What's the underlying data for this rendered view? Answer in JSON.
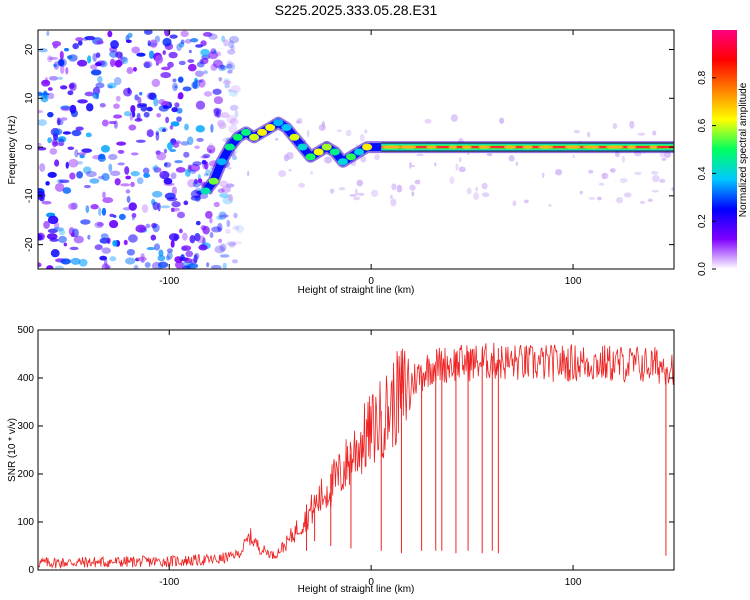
{
  "title": "S225.2025.333.05.28.E31",
  "chart_data": [
    {
      "type": "heatmap",
      "description_of_content": "spectrogram of frequency vs height",
      "xlabel": "Height of straight line (km)",
      "ylabel": "Frequency (Hz)",
      "xlim": [
        -165,
        150
      ],
      "ylim": [
        -25,
        24
      ],
      "xticks": [
        -100,
        0,
        100
      ],
      "yticks": [
        -20,
        -10,
        0,
        10,
        20
      ],
      "colorbar": {
        "label": "Normalized spectral amplitude",
        "range": [
          0,
          1
        ],
        "ticks": [
          0.0,
          0.2,
          0.4,
          0.6,
          0.8
        ],
        "colormap": [
          "#ffffff",
          "#7f00ff",
          "#0000ff",
          "#00c8ff",
          "#00ff60",
          "#ffff00",
          "#ff8000",
          "#ff0000",
          "#ff0080"
        ]
      },
      "ridge": {
        "name": "dominant frequency track",
        "points": [
          {
            "x": -82,
            "y": -9
          },
          {
            "x": -78,
            "y": -7
          },
          {
            "x": -74,
            "y": -3
          },
          {
            "x": -70,
            "y": 0
          },
          {
            "x": -66,
            "y": 2
          },
          {
            "x": -62,
            "y": 3
          },
          {
            "x": -58,
            "y": 2
          },
          {
            "x": -54,
            "y": 3
          },
          {
            "x": -50,
            "y": 4
          },
          {
            "x": -46,
            "y": 5
          },
          {
            "x": -42,
            "y": 4
          },
          {
            "x": -38,
            "y": 2
          },
          {
            "x": -34,
            "y": 0
          },
          {
            "x": -30,
            "y": -2
          },
          {
            "x": -26,
            "y": -1
          },
          {
            "x": -22,
            "y": 0
          },
          {
            "x": -18,
            "y": -1
          },
          {
            "x": -14,
            "y": -3
          },
          {
            "x": -10,
            "y": -2
          },
          {
            "x": -6,
            "y": -1
          },
          {
            "x": -2,
            "y": 0
          },
          {
            "x": 5,
            "y": 0
          },
          {
            "x": 150,
            "y": 0
          }
        ],
        "stable_amplitude": 0.95
      },
      "noise_region": {
        "x_from": -165,
        "x_to": -80,
        "y_from": -25,
        "y_to": 24
      }
    },
    {
      "type": "line",
      "xlabel": "Height of straight line (km)",
      "ylabel": "SNR (10 * v/v)",
      "xlim": [
        -165,
        150
      ],
      "ylim": [
        0,
        500
      ],
      "xticks": [
        -100,
        0,
        100
      ],
      "yticks": [
        0,
        100,
        200,
        300,
        400,
        500
      ],
      "color": "#ee2222",
      "series": [
        {
          "name": "SNR",
          "envelope": [
            {
              "x": -165,
              "y": 15
            },
            {
              "x": -100,
              "y": 18
            },
            {
              "x": -75,
              "y": 22
            },
            {
              "x": -65,
              "y": 35
            },
            {
              "x": -60,
              "y": 70
            },
            {
              "x": -55,
              "y": 45
            },
            {
              "x": -48,
              "y": 30
            },
            {
              "x": -42,
              "y": 55
            },
            {
              "x": -35,
              "y": 95
            },
            {
              "x": -25,
              "y": 150
            },
            {
              "x": -15,
              "y": 200
            },
            {
              "x": -8,
              "y": 250
            },
            {
              "x": 0,
              "y": 290
            },
            {
              "x": 8,
              "y": 330
            },
            {
              "x": 15,
              "y": 370
            },
            {
              "x": 22,
              "y": 400
            },
            {
              "x": 30,
              "y": 425
            },
            {
              "x": 40,
              "y": 430
            },
            {
              "x": 60,
              "y": 435
            },
            {
              "x": 80,
              "y": 430
            },
            {
              "x": 100,
              "y": 432
            },
            {
              "x": 120,
              "y": 430
            },
            {
              "x": 150,
              "y": 425
            }
          ],
          "dropouts": [
            {
              "x": -32,
              "y": 40
            },
            {
              "x": -28,
              "y": 60
            },
            {
              "x": -20,
              "y": 50
            },
            {
              "x": -10,
              "y": 45
            },
            {
              "x": 5,
              "y": 40
            },
            {
              "x": 15,
              "y": 35
            },
            {
              "x": 25,
              "y": 40
            },
            {
              "x": 32,
              "y": 40
            },
            {
              "x": 35,
              "y": 40
            },
            {
              "x": 42,
              "y": 35
            },
            {
              "x": 48,
              "y": 40
            },
            {
              "x": 55,
              "y": 35
            },
            {
              "x": 60,
              "y": 40
            },
            {
              "x": 63,
              "y": 35
            },
            {
              "x": 146,
              "y": 30
            }
          ]
        }
      ]
    }
  ]
}
